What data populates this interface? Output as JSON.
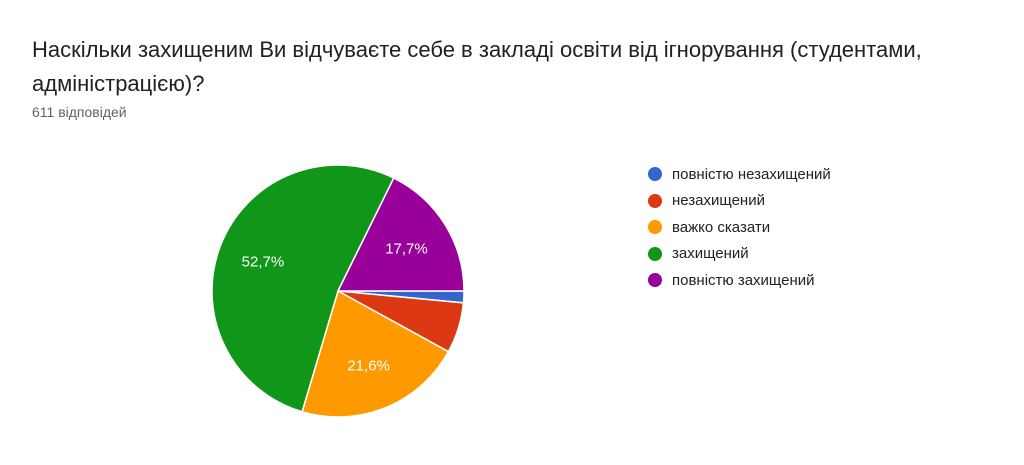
{
  "question": {
    "title": "Наскільки захищеним Ви відчуваєте себе в закладі освіти від ігнорування (студентами, адміністрацією)?",
    "responses": "611 відповідей"
  },
  "chart_data": {
    "type": "pie",
    "categories": [
      "повністю незахищений",
      "незахищений",
      "важко сказати",
      "захищений",
      "повністю захищений"
    ],
    "values": [
      1.5,
      6.5,
      21.6,
      52.7,
      17.7
    ],
    "data_labels": [
      "",
      "",
      "21,6%",
      "52,7%",
      "17,7%"
    ],
    "colors": [
      "#3366cc",
      "#dc3912",
      "#ff9900",
      "#109618",
      "#990099"
    ],
    "legend": "right",
    "start_angle": "3 o'clock",
    "direction": "clockwise"
  }
}
